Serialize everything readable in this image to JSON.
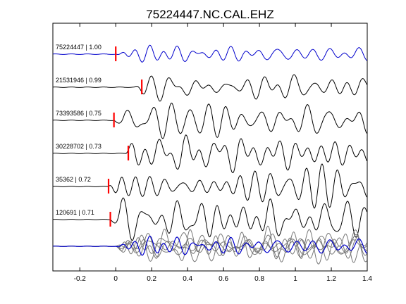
{
  "chart_data": {
    "type": "line",
    "title": "75224447.NC.CAL.EHZ",
    "xlabel": "",
    "ylabel": "",
    "xlim": [
      -0.35,
      1.4
    ],
    "xticks": [
      -0.2,
      0,
      0.2,
      0.4,
      0.6,
      0.8,
      1,
      1.2,
      1.4
    ],
    "xtick_labels": [
      "-0.2",
      "0",
      "0.2",
      "0.4",
      "0.6",
      "0.8",
      "1",
      "1.2",
      "1.4"
    ],
    "grid": false,
    "legend": "none",
    "traces": [
      {
        "label": "75224447 | 1.00",
        "pick_time": 0.0,
        "color": "#0000cc",
        "onset": 0.0,
        "amplitude": 0.45,
        "seed": 3
      },
      {
        "label": "21531946 | 0.99",
        "pick_time": 0.145,
        "color": "#000000",
        "onset": 0.1,
        "amplitude": 0.7,
        "seed": 7
      },
      {
        "label": "73393586 | 0.75",
        "pick_time": -0.01,
        "color": "#000000",
        "onset": -0.01,
        "amplitude": 1.0,
        "seed": 11
      },
      {
        "label": "30228702 | 0.73",
        "pick_time": 0.07,
        "color": "#000000",
        "onset": 0.05,
        "amplitude": 0.95,
        "seed": 17
      },
      {
        "label": "35362 | 0.72",
        "pick_time": -0.04,
        "color": "#000000",
        "onset": -0.04,
        "amplitude": 1.0,
        "seed": 23
      },
      {
        "label": "120691 | 0.71",
        "pick_time": -0.03,
        "color": "#000000",
        "onset": -0.03,
        "amplitude": 1.0,
        "seed": 29
      }
    ],
    "stack": {
      "colors": {
        "overlay": "#777777",
        "reference": "#0000cc"
      },
      "onset": 0.0
    }
  }
}
